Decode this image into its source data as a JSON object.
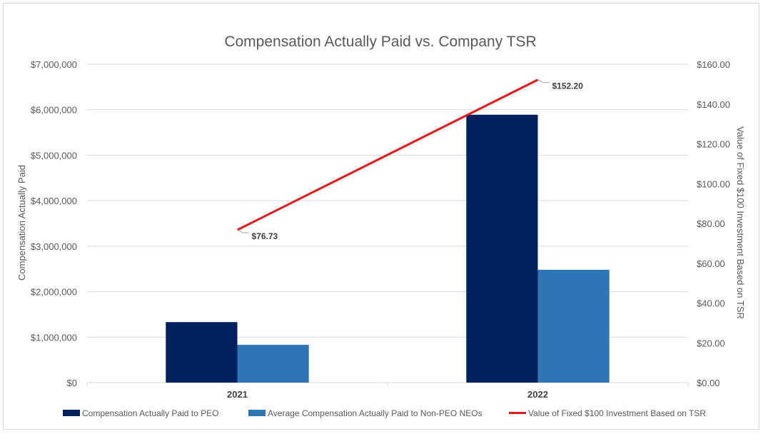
{
  "chart_data": {
    "type": "bar",
    "title": "Compensation Actually Paid vs. Company TSR",
    "categories": [
      "2021",
      "2022"
    ],
    "ylabel": "Compensation Actually Paid",
    "y2label": "Value of Fixed $100 Investment Based on TSR",
    "ylim": [
      0,
      7000000
    ],
    "y2lim": [
      0,
      160
    ],
    "yticks": [
      "$0",
      "$1,000,000",
      "$2,000,000",
      "$3,000,000",
      "$4,000,000",
      "$5,000,000",
      "$6,000,000",
      "$7,000,000"
    ],
    "y2ticks": [
      "$0.00",
      "$20.00",
      "$40.00",
      "$60.00",
      "$80.00",
      "$100.00",
      "$120.00",
      "$140.00",
      "$160.00"
    ],
    "grid": true,
    "legend_position": "bottom",
    "series": [
      {
        "name": "Compensation Actually Paid to PEO",
        "kind": "bar",
        "axis": "left",
        "color": "#002060",
        "values": [
          1330000,
          5890000
        ]
      },
      {
        "name": "Average Compensation Actually Paid to Non-PEO NEOs",
        "kind": "bar",
        "axis": "left",
        "color": "#2E75B6",
        "values": [
          830000,
          2480000
        ]
      },
      {
        "name": "Value of Fixed $100 Investment Based on TSR",
        "kind": "line",
        "axis": "right",
        "color": "#E31A1C",
        "values": [
          76.73,
          152.2
        ],
        "labels": [
          "$76.73",
          "$152.20"
        ]
      }
    ]
  }
}
